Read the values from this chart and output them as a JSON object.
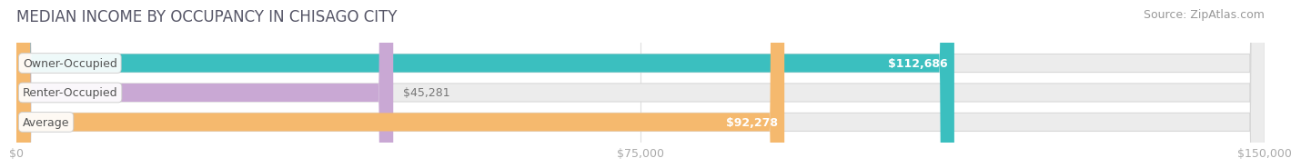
{
  "title": "MEDIAN INCOME BY OCCUPANCY IN CHISAGO CITY",
  "source": "Source: ZipAtlas.com",
  "categories": [
    "Owner-Occupied",
    "Renter-Occupied",
    "Average"
  ],
  "values": [
    112686,
    45281,
    92278
  ],
  "labels": [
    "$112,686",
    "$45,281",
    "$92,278"
  ],
  "label_colors": [
    "white",
    "#888888",
    "white"
  ],
  "bar_colors": [
    "#3bbfbf",
    "#c9a8d4",
    "#f5b96e"
  ],
  "bar_bg_color": "#ececec",
  "bar_bg_edge_color": "#d8d8d8",
  "xlim": [
    0,
    150000
  ],
  "xticks": [
    0,
    75000,
    150000
  ],
  "xtick_labels": [
    "$0",
    "$75,000",
    "$150,000"
  ],
  "title_fontsize": 12,
  "source_fontsize": 9,
  "label_fontsize": 9,
  "category_fontsize": 9,
  "bar_height": 0.62,
  "background_color": "#ffffff",
  "title_color": "#555566",
  "source_color": "#999999",
  "tick_color": "#aaaaaa",
  "grid_color": "#dedede",
  "cat_label_color": "#555555"
}
